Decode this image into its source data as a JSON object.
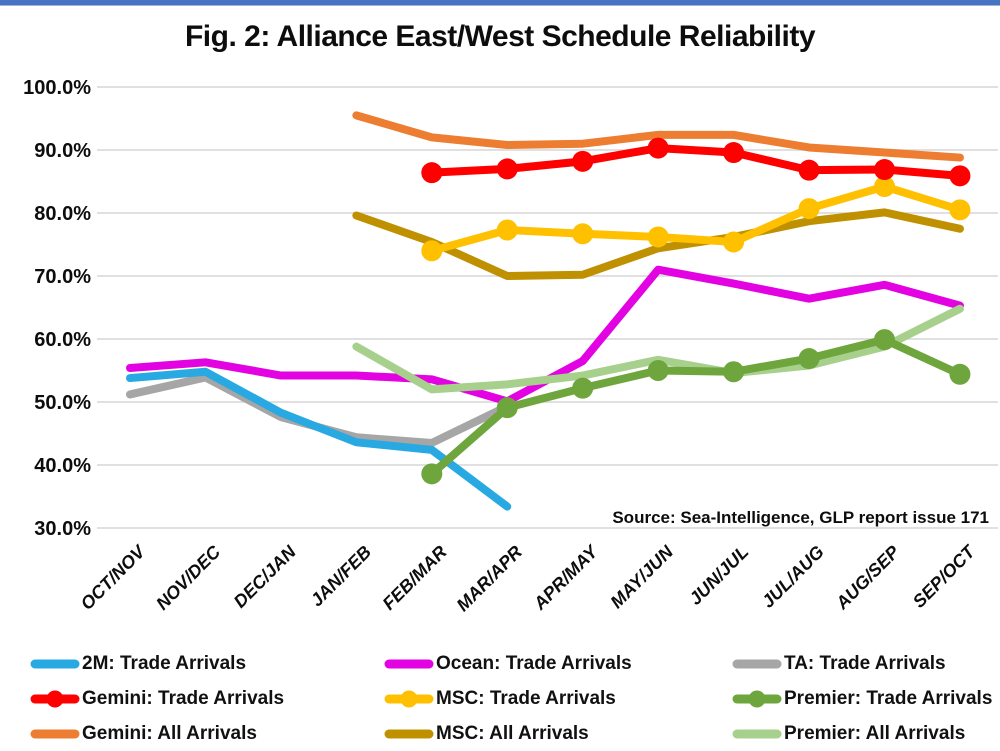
{
  "chart_data": {
    "type": "line",
    "title": "Fig. 2: Alliance East/West Schedule Reliability",
    "source_note": "Source: Sea-Intelligence, GLP report issue 171",
    "categories": [
      "OCT/NOV",
      "NOV/DEC",
      "DEC/JAN",
      "JAN/FEB",
      "FEB/MAR",
      "MAR/APR",
      "APR/MAY",
      "MAY/JUN",
      "JUN/JUL",
      "JUL/AUG",
      "AUG/SEP",
      "SEP/OCT"
    ],
    "y_axis": {
      "min": 30,
      "max": 100,
      "step": 10,
      "tick_labels": [
        "100.0%",
        "90.0%",
        "80.0%",
        "70.0%",
        "60.0%",
        "50.0%",
        "40.0%",
        "30.0%"
      ],
      "format": "percent"
    },
    "grid": "horizontal-only",
    "gridline_color": "#d6d6d6",
    "top_border_color": "#4673c2",
    "legend_position": "bottom",
    "series": [
      {
        "name": "2M: Trade Arrivals",
        "color": "#29a9e1",
        "marker": false,
        "values": [
          53.8,
          54.8,
          48.3,
          43.6,
          42.4,
          33.4,
          null,
          null,
          null,
          null,
          null,
          null
        ]
      },
      {
        "name": "Ocean: Trade Arrivals",
        "color": "#e202e2",
        "marker": false,
        "values": [
          55.4,
          56.3,
          54.2,
          54.2,
          53.6,
          50.1,
          56.5,
          71.0,
          68.8,
          66.4,
          68.6,
          65.3
        ]
      },
      {
        "name": "TA: Trade Arrivals",
        "color": "#a6a6a6",
        "marker": false,
        "values": [
          51.2,
          53.9,
          47.6,
          44.4,
          43.5,
          49.3,
          null,
          null,
          null,
          null,
          null,
          null
        ]
      },
      {
        "name": "Gemini: Trade Arrivals",
        "color": "#fe0000",
        "marker": true,
        "values": [
          null,
          null,
          null,
          null,
          86.4,
          87.0,
          88.2,
          90.3,
          89.6,
          86.8,
          86.9,
          85.9
        ]
      },
      {
        "name": "MSC: Trade Arrivals",
        "color": "#ffc000",
        "marker": true,
        "values": [
          null,
          null,
          null,
          null,
          74.0,
          77.3,
          76.7,
          76.2,
          75.4,
          80.7,
          84.2,
          80.5
        ]
      },
      {
        "name": "Premier: Trade Arrivals",
        "color": "#6fa53d",
        "marker": true,
        "values": [
          null,
          null,
          null,
          null,
          38.6,
          49.1,
          52.2,
          55.0,
          54.8,
          56.9,
          59.9,
          54.4
        ]
      },
      {
        "name": "Gemini: All Arrivals",
        "color": "#ed7d31",
        "marker": false,
        "values": [
          null,
          null,
          null,
          95.5,
          92.0,
          90.8,
          91.0,
          92.4,
          92.4,
          90.4,
          89.6,
          88.8
        ]
      },
      {
        "name": "MSC: All Arrivals",
        "color": "#bf9000",
        "marker": false,
        "values": [
          null,
          null,
          null,
          79.6,
          75.4,
          70.0,
          70.2,
          74.4,
          76.2,
          78.7,
          80.1,
          77.5
        ]
      },
      {
        "name": "Premier: All Arrivals",
        "color": "#a8d08d",
        "marker": false,
        "values": [
          null,
          null,
          null,
          58.8,
          52.0,
          52.8,
          54.2,
          56.7,
          54.6,
          55.8,
          58.8,
          64.8
        ]
      }
    ]
  }
}
